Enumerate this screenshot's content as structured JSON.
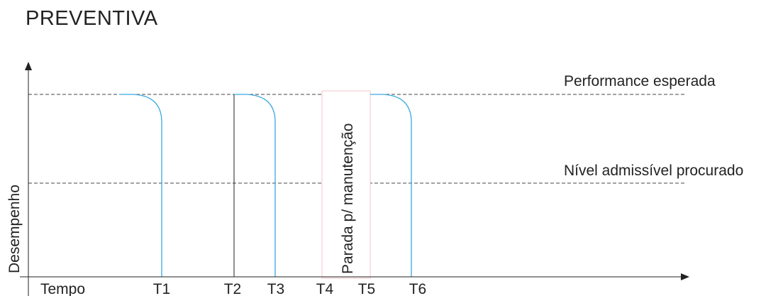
{
  "title": "PREVENTIVA",
  "y_axis_label": "Desempenho",
  "x_axis_label": "Tempo",
  "lines": {
    "expected": "Performance esperada",
    "admissible": "Nível admissível procurado"
  },
  "maintenance_box": "Parada p/ manutenção",
  "time_marks": [
    "T1",
    "T2",
    "T3",
    "T4",
    "T5",
    "T6"
  ],
  "colors": {
    "curve": "#3aa8e0",
    "axis": "#222222",
    "dashed": "#444444",
    "box_border": "#f3c6cc"
  }
}
